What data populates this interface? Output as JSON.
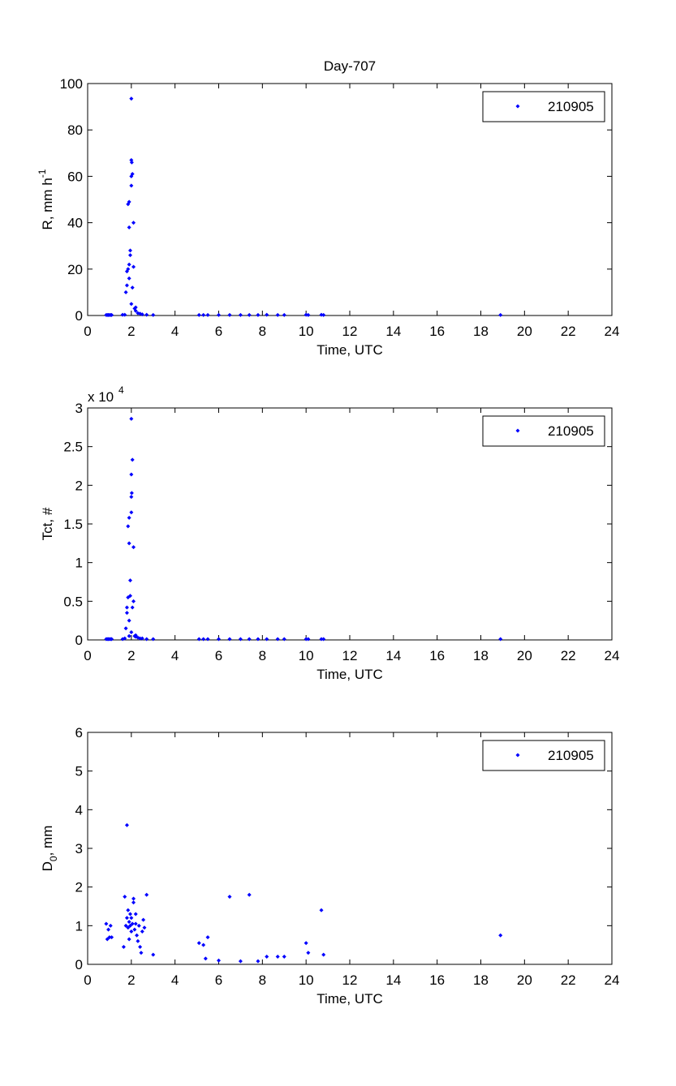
{
  "chart_data": [
    {
      "type": "scatter",
      "title": "Day-707",
      "xlabel": "Time, UTC",
      "ylabel": "R, mm h",
      "ylabel_sup": "-1",
      "x": [
        0.85,
        0.9,
        0.95,
        1.0,
        1.05,
        1.1,
        1.6,
        1.7,
        1.75,
        1.8,
        1.8,
        1.85,
        1.85,
        1.9,
        1.9,
        1.95,
        1.95,
        1.9,
        1.9,
        2.0,
        2.0,
        2.0,
        2.02,
        2.0,
        2.05,
        2.1,
        2.1,
        2.05,
        2.0,
        2.15,
        2.2,
        2.2,
        2.3,
        2.4,
        2.5,
        2.7,
        3.0,
        5.1,
        5.3,
        5.5,
        6.0,
        6.5,
        7.0,
        7.4,
        7.8,
        8.2,
        8.7,
        9.0,
        10.0,
        10.1,
        10.7,
        10.8,
        18.9
      ],
      "series": [
        {
          "name": "210905",
          "color": "#0000ff",
          "values": [
            0.2,
            0.2,
            0.2,
            0.2,
            0.2,
            0.2,
            0.3,
            0.3,
            10,
            13,
            19,
            20,
            48,
            49,
            38,
            28,
            26,
            22,
            16,
            56,
            60,
            67,
            66,
            93.5,
            61,
            40,
            21,
            12,
            5,
            3,
            3.5,
            2,
            1,
            0.8,
            0.5,
            0.3,
            0.2,
            0.2,
            0.2,
            0.2,
            0.2,
            0.2,
            0.2,
            0.2,
            0.2,
            0.3,
            0.2,
            0.2,
            0.3,
            0.2,
            0.3,
            0.2,
            0.2
          ]
        }
      ],
      "xlim": [
        0,
        24
      ],
      "ylim": [
        0,
        100
      ],
      "xticks": [
        0,
        2,
        4,
        6,
        8,
        10,
        12,
        14,
        16,
        18,
        20,
        22,
        24
      ],
      "yticks": [
        0,
        20,
        40,
        60,
        80,
        100
      ]
    },
    {
      "type": "scatter",
      "xlabel": "Time, UTC",
      "ylabel": "Tct, #",
      "y_multiplier": "x 10",
      "y_multiplier_exp": "4",
      "x": [
        0.85,
        0.9,
        0.95,
        1.0,
        1.05,
        1.1,
        1.6,
        1.7,
        1.75,
        1.8,
        1.8,
        1.85,
        1.85,
        1.9,
        1.9,
        1.95,
        1.95,
        1.9,
        1.9,
        2.0,
        2.0,
        2.0,
        2.02,
        2.0,
        2.05,
        2.1,
        2.1,
        2.05,
        2.0,
        2.15,
        2.2,
        2.2,
        2.3,
        2.4,
        2.5,
        2.7,
        3.0,
        5.1,
        5.3,
        5.5,
        6.0,
        6.5,
        7.0,
        7.4,
        7.8,
        8.2,
        8.7,
        9.0,
        10.0,
        10.1,
        10.7,
        10.8,
        18.9
      ],
      "series": [
        {
          "name": "210905",
          "color": "#0000ff",
          "values": [
            0.01,
            0.01,
            0.01,
            0.01,
            0.01,
            0.01,
            0.01,
            0.02,
            0.15,
            0.42,
            0.35,
            0.55,
            1.47,
            1.58,
            1.25,
            0.77,
            0.57,
            0.25,
            0.05,
            1.65,
            1.85,
            2.14,
            1.9,
            2.86,
            2.33,
            1.2,
            0.5,
            0.42,
            0.1,
            0.05,
            0.06,
            0.04,
            0.03,
            0.02,
            0.02,
            0.01,
            0.01,
            0.01,
            0.01,
            0.01,
            0.01,
            0.01,
            0.01,
            0.01,
            0.01,
            0.01,
            0.01,
            0.01,
            0.01,
            0.01,
            0.01,
            0.01,
            0.01
          ]
        }
      ],
      "xlim": [
        0,
        24
      ],
      "ylim": [
        0,
        3
      ],
      "xticks": [
        0,
        2,
        4,
        6,
        8,
        10,
        12,
        14,
        16,
        18,
        20,
        22,
        24
      ],
      "yticks": [
        0,
        0.5,
        1,
        1.5,
        2,
        2.5,
        3
      ]
    },
    {
      "type": "scatter",
      "xlabel": "Time, UTC",
      "ylabel": "D",
      "ylabel_sub": "0",
      "ylabel_suffix": ", mm",
      "x": [
        0.85,
        0.9,
        0.95,
        1.0,
        1.05,
        1.1,
        1.65,
        1.7,
        1.75,
        1.8,
        1.8,
        1.85,
        1.85,
        1.9,
        1.9,
        1.95,
        1.95,
        2.0,
        2.0,
        2.05,
        2.1,
        2.1,
        2.15,
        2.2,
        2.2,
        2.25,
        2.3,
        2.35,
        2.4,
        2.45,
        2.5,
        2.55,
        2.6,
        2.7,
        3.0,
        5.1,
        5.3,
        5.4,
        5.5,
        6.0,
        6.5,
        7.0,
        7.4,
        7.8,
        8.2,
        8.7,
        9.0,
        10.0,
        10.1,
        10.7,
        10.8,
        18.9
      ],
      "series": [
        {
          "name": "210905",
          "color": "#0000ff",
          "values": [
            1.05,
            0.65,
            0.9,
            0.7,
            1.0,
            0.7,
            0.45,
            1.75,
            1.0,
            3.6,
            1.2,
            0.95,
            1.4,
            1.1,
            0.65,
            1.3,
            1.0,
            1.2,
            0.85,
            1.05,
            1.7,
            1.6,
            0.9,
            1.3,
            1.05,
            0.75,
            0.6,
            1.0,
            0.45,
            0.3,
            0.85,
            1.15,
            0.95,
            1.8,
            0.25,
            0.55,
            0.5,
            0.15,
            0.7,
            0.1,
            1.75,
            0.08,
            1.8,
            0.08,
            0.2,
            0.2,
            0.2,
            0.55,
            0.3,
            1.4,
            0.25,
            0.75
          ]
        }
      ],
      "xlim": [
        0,
        24
      ],
      "ylim": [
        0,
        6
      ],
      "xticks": [
        0,
        2,
        4,
        6,
        8,
        10,
        12,
        14,
        16,
        18,
        20,
        22,
        24
      ],
      "yticks": [
        0,
        1,
        2,
        3,
        4,
        5,
        6
      ]
    }
  ]
}
